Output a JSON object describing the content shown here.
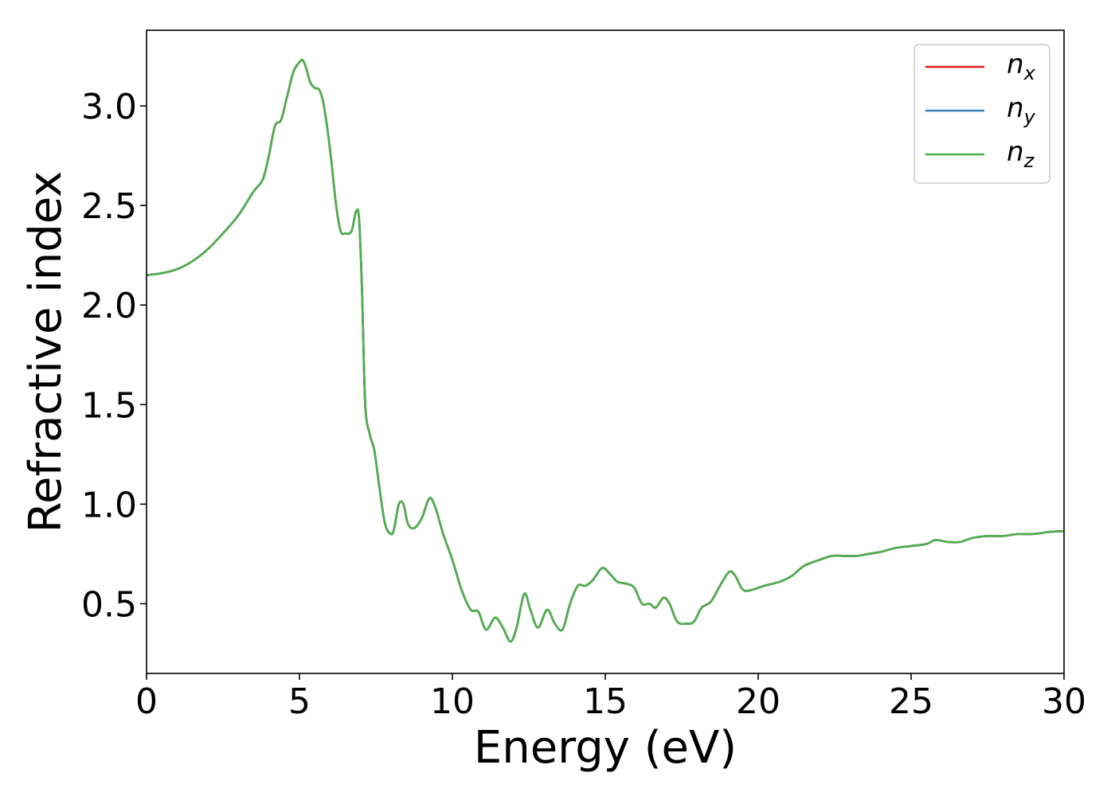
{
  "chart_data": {
    "type": "line",
    "title": "",
    "xlabel": "Energy (eV)",
    "ylabel": "Refractive index",
    "xlim": [
      0,
      30
    ],
    "ylim": [
      0.15,
      3.38
    ],
    "xticks": [
      0,
      5,
      10,
      15,
      20,
      25,
      30
    ],
    "xtick_labels": [
      "0",
      "5",
      "10",
      "15",
      "20",
      "25",
      "30"
    ],
    "yticks": [
      0.5,
      1.0,
      1.5,
      2.0,
      2.5,
      3.0
    ],
    "ytick_labels": [
      "0.5",
      "1.0",
      "1.5",
      "2.0",
      "2.5",
      "3.0"
    ],
    "grid": false,
    "legend_position": "top-right",
    "series": [
      {
        "name": "n_x",
        "base": "n",
        "sub": "x",
        "color": "#e41a1c",
        "x": [
          0,
          0.5,
          1,
          1.5,
          2,
          2.5,
          3,
          3.5,
          3.8,
          4.0,
          4.2,
          4.4,
          4.6,
          4.8,
          5.0,
          5.1,
          5.2,
          5.35,
          5.5,
          5.65,
          5.8,
          6.0,
          6.2,
          6.35,
          6.5,
          6.7,
          6.85,
          6.95,
          7.05,
          7.15,
          7.3,
          7.45,
          7.6,
          7.8,
          8.0,
          8.1,
          8.25,
          8.4,
          8.55,
          8.75,
          9.0,
          9.25,
          9.45,
          9.7,
          10.0,
          10.3,
          10.6,
          10.85,
          11.1,
          11.4,
          11.65,
          11.9,
          12.1,
          12.35,
          12.55,
          12.8,
          13.1,
          13.35,
          13.6,
          13.85,
          14.1,
          14.35,
          14.6,
          14.9,
          15.15,
          15.4,
          15.7,
          15.95,
          16.2,
          16.45,
          16.65,
          16.9,
          17.1,
          17.35,
          17.65,
          17.9,
          18.15,
          18.45,
          18.75,
          19.05,
          19.25,
          19.5,
          19.8,
          20.2,
          20.7,
          21.1,
          21.5,
          22,
          22.4,
          22.8,
          23.2,
          23.6,
          24,
          24.5,
          25,
          25.5,
          25.8,
          26.2,
          26.6,
          27,
          27.5,
          28,
          28.5,
          29,
          29.5,
          30
        ],
        "y": [
          2.15,
          2.16,
          2.18,
          2.22,
          2.28,
          2.36,
          2.45,
          2.57,
          2.63,
          2.75,
          2.9,
          2.93,
          3.05,
          3.17,
          3.22,
          3.23,
          3.2,
          3.12,
          3.09,
          3.08,
          3.0,
          2.78,
          2.5,
          2.37,
          2.36,
          2.37,
          2.47,
          2.43,
          2.05,
          1.5,
          1.35,
          1.27,
          1.1,
          0.9,
          0.85,
          0.88,
          1.0,
          1.0,
          0.9,
          0.88,
          0.93,
          1.03,
          0.98,
          0.85,
          0.72,
          0.57,
          0.47,
          0.46,
          0.37,
          0.43,
          0.38,
          0.31,
          0.38,
          0.55,
          0.47,
          0.38,
          0.47,
          0.4,
          0.37,
          0.5,
          0.59,
          0.59,
          0.62,
          0.68,
          0.65,
          0.61,
          0.6,
          0.58,
          0.5,
          0.5,
          0.48,
          0.53,
          0.5,
          0.41,
          0.4,
          0.41,
          0.48,
          0.51,
          0.59,
          0.66,
          0.64,
          0.57,
          0.57,
          0.59,
          0.61,
          0.64,
          0.69,
          0.72,
          0.74,
          0.74,
          0.74,
          0.75,
          0.76,
          0.78,
          0.79,
          0.8,
          0.82,
          0.81,
          0.81,
          0.83,
          0.84,
          0.84,
          0.85,
          0.85,
          0.86,
          0.865
        ]
      },
      {
        "name": "n_y",
        "base": "n",
        "sub": "y",
        "color": "#377eb8",
        "x": [
          0,
          0.5,
          1,
          1.5,
          2,
          2.5,
          3,
          3.5,
          3.8,
          4.0,
          4.2,
          4.4,
          4.6,
          4.8,
          5.0,
          5.1,
          5.2,
          5.35,
          5.5,
          5.65,
          5.8,
          6.0,
          6.2,
          6.35,
          6.5,
          6.7,
          6.85,
          6.95,
          7.05,
          7.15,
          7.3,
          7.45,
          7.6,
          7.8,
          8.0,
          8.1,
          8.25,
          8.4,
          8.55,
          8.75,
          9.0,
          9.25,
          9.45,
          9.7,
          10.0,
          10.3,
          10.6,
          10.85,
          11.1,
          11.4,
          11.65,
          11.9,
          12.1,
          12.35,
          12.55,
          12.8,
          13.1,
          13.35,
          13.6,
          13.85,
          14.1,
          14.35,
          14.6,
          14.9,
          15.15,
          15.4,
          15.7,
          15.95,
          16.2,
          16.45,
          16.65,
          16.9,
          17.1,
          17.35,
          17.65,
          17.9,
          18.15,
          18.45,
          18.75,
          19.05,
          19.25,
          19.5,
          19.8,
          20.2,
          20.7,
          21.1,
          21.5,
          22,
          22.4,
          22.8,
          23.2,
          23.6,
          24,
          24.5,
          25,
          25.5,
          25.8,
          26.2,
          26.6,
          27,
          27.5,
          28,
          28.5,
          29,
          29.5,
          30
        ],
        "y": [
          2.15,
          2.16,
          2.18,
          2.22,
          2.28,
          2.36,
          2.45,
          2.57,
          2.63,
          2.75,
          2.9,
          2.93,
          3.05,
          3.17,
          3.22,
          3.23,
          3.2,
          3.12,
          3.09,
          3.08,
          3.0,
          2.78,
          2.5,
          2.37,
          2.36,
          2.37,
          2.47,
          2.43,
          2.05,
          1.5,
          1.35,
          1.27,
          1.1,
          0.9,
          0.85,
          0.88,
          1.0,
          1.0,
          0.9,
          0.88,
          0.93,
          1.03,
          0.98,
          0.85,
          0.72,
          0.57,
          0.47,
          0.46,
          0.37,
          0.43,
          0.38,
          0.31,
          0.38,
          0.55,
          0.47,
          0.38,
          0.47,
          0.4,
          0.37,
          0.5,
          0.59,
          0.59,
          0.62,
          0.68,
          0.65,
          0.61,
          0.6,
          0.58,
          0.5,
          0.5,
          0.48,
          0.53,
          0.5,
          0.41,
          0.4,
          0.41,
          0.48,
          0.51,
          0.59,
          0.66,
          0.64,
          0.57,
          0.57,
          0.59,
          0.61,
          0.64,
          0.69,
          0.72,
          0.74,
          0.74,
          0.74,
          0.75,
          0.76,
          0.78,
          0.79,
          0.8,
          0.82,
          0.81,
          0.81,
          0.83,
          0.84,
          0.84,
          0.85,
          0.85,
          0.86,
          0.865
        ]
      },
      {
        "name": "n_z",
        "base": "n",
        "sub": "z",
        "color": "#4daf4a",
        "x": [
          0,
          0.5,
          1,
          1.5,
          2,
          2.5,
          3,
          3.5,
          3.8,
          4.0,
          4.2,
          4.4,
          4.6,
          4.8,
          5.0,
          5.1,
          5.2,
          5.35,
          5.5,
          5.65,
          5.8,
          6.0,
          6.2,
          6.35,
          6.5,
          6.7,
          6.85,
          6.95,
          7.05,
          7.15,
          7.3,
          7.45,
          7.6,
          7.8,
          8.0,
          8.1,
          8.25,
          8.4,
          8.55,
          8.75,
          9.0,
          9.25,
          9.45,
          9.7,
          10.0,
          10.3,
          10.6,
          10.85,
          11.1,
          11.4,
          11.65,
          11.9,
          12.1,
          12.35,
          12.55,
          12.8,
          13.1,
          13.35,
          13.6,
          13.85,
          14.1,
          14.35,
          14.6,
          14.9,
          15.15,
          15.4,
          15.7,
          15.95,
          16.2,
          16.45,
          16.65,
          16.9,
          17.1,
          17.35,
          17.65,
          17.9,
          18.15,
          18.45,
          18.75,
          19.05,
          19.25,
          19.5,
          19.8,
          20.2,
          20.7,
          21.1,
          21.5,
          22,
          22.4,
          22.8,
          23.2,
          23.6,
          24,
          24.5,
          25,
          25.5,
          25.8,
          26.2,
          26.6,
          27,
          27.5,
          28,
          28.5,
          29,
          29.5,
          30
        ],
        "y": [
          2.15,
          2.16,
          2.18,
          2.22,
          2.28,
          2.36,
          2.45,
          2.57,
          2.63,
          2.75,
          2.9,
          2.93,
          3.05,
          3.17,
          3.22,
          3.23,
          3.2,
          3.12,
          3.09,
          3.08,
          3.0,
          2.78,
          2.5,
          2.37,
          2.36,
          2.37,
          2.47,
          2.43,
          2.05,
          1.5,
          1.35,
          1.27,
          1.1,
          0.9,
          0.85,
          0.88,
          1.0,
          1.0,
          0.9,
          0.88,
          0.93,
          1.03,
          0.98,
          0.85,
          0.72,
          0.57,
          0.47,
          0.46,
          0.37,
          0.43,
          0.38,
          0.31,
          0.38,
          0.55,
          0.47,
          0.38,
          0.47,
          0.4,
          0.37,
          0.5,
          0.59,
          0.59,
          0.62,
          0.68,
          0.65,
          0.61,
          0.6,
          0.58,
          0.5,
          0.5,
          0.48,
          0.53,
          0.5,
          0.41,
          0.4,
          0.41,
          0.48,
          0.51,
          0.59,
          0.66,
          0.64,
          0.57,
          0.57,
          0.59,
          0.61,
          0.64,
          0.69,
          0.72,
          0.74,
          0.74,
          0.74,
          0.75,
          0.76,
          0.78,
          0.79,
          0.8,
          0.82,
          0.81,
          0.81,
          0.83,
          0.84,
          0.84,
          0.85,
          0.85,
          0.86,
          0.865
        ]
      }
    ]
  }
}
